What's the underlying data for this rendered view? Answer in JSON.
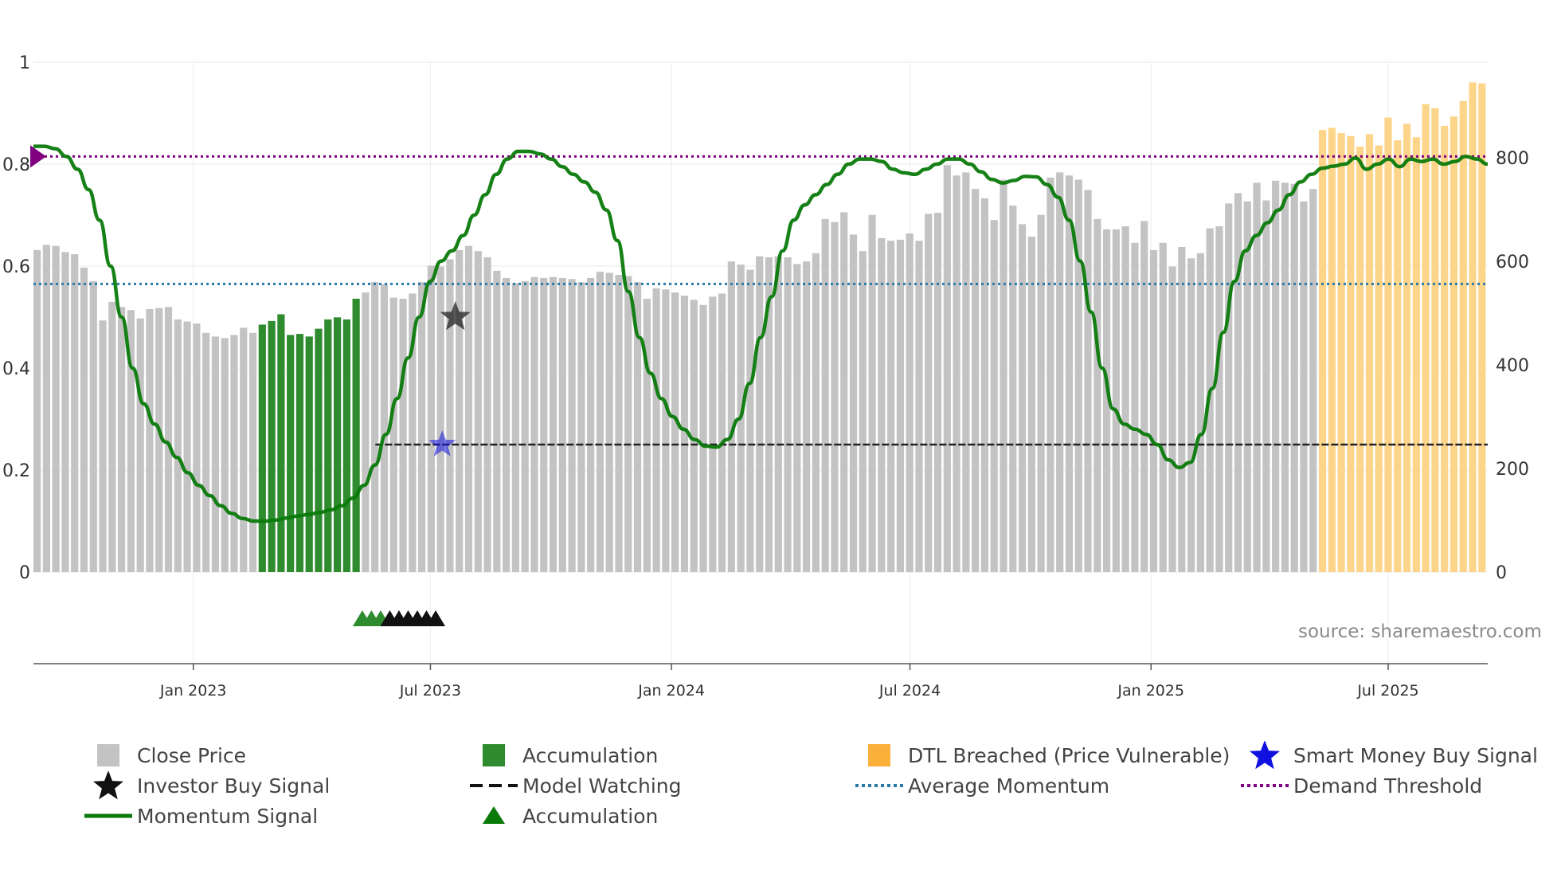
{
  "source_text": "source: sharemaestro.com",
  "colors": {
    "close_price": "#c3c3c3",
    "accumulation": "#2e8b2e",
    "dtl_breached": "#fdd58a",
    "momentum": "#0a7a0a",
    "average_momentum": "#2a7aa8",
    "demand_threshold": "#800080",
    "model_watching": "#222222",
    "smart_money": "#1010e0",
    "investor_buy": "#222222"
  },
  "legend": [
    {
      "key": "close_price",
      "label": "Close Price",
      "icon": "square-icon"
    },
    {
      "key": "accumulation_bar",
      "label": "Accumulation",
      "icon": "square-icon"
    },
    {
      "key": "dtl_breached",
      "label": "DTL Breached (Price Vulnerable)",
      "icon": "square-icon"
    },
    {
      "key": "smart_money",
      "label": "Smart Money Buy Signal",
      "icon": "star-icon"
    },
    {
      "key": "investor_buy",
      "label": "Investor Buy Signal",
      "icon": "star-icon"
    },
    {
      "key": "model_watching",
      "label": "Model Watching",
      "icon": "dash-line-icon"
    },
    {
      "key": "average_momentum",
      "label": "Average Momentum",
      "icon": "dot-line-icon"
    },
    {
      "key": "demand_threshold",
      "label": "Demand Threshold",
      "icon": "dot-line-icon"
    },
    {
      "key": "momentum",
      "label": "Momentum Signal",
      "icon": "line-icon"
    },
    {
      "key": "accumulation_marker",
      "label": "Accumulation",
      "icon": "triangle-icon"
    }
  ],
  "chart_data": {
    "type": "bar",
    "title": "",
    "x_axis": {
      "start": "2022-09-01",
      "end": "2025-09-15",
      "ticks": [
        {
          "date": "2023-01-01",
          "label": "Jan 2023"
        },
        {
          "date": "2023-07-01",
          "label": "Jul 2023"
        },
        {
          "date": "2024-01-01",
          "label": "Jan 2024"
        },
        {
          "date": "2024-07-01",
          "label": "Jul 2024"
        },
        {
          "date": "2025-01-01",
          "label": "Jan 2025"
        },
        {
          "date": "2025-07-01",
          "label": "Jul 2025"
        }
      ]
    },
    "y_left": {
      "min": 0,
      "max": 1,
      "ticks": [
        {
          "v": 0,
          "label": "0"
        },
        {
          "v": 0.2,
          "label": "0.2"
        },
        {
          "v": 0.4,
          "label": "0.4"
        },
        {
          "v": 0.6,
          "label": "0.6"
        },
        {
          "v": 0.8,
          "label": "0.8"
        },
        {
          "v": 1,
          "label": "1"
        }
      ]
    },
    "y_right": {
      "min": 0,
      "max": 985,
      "ticks": [
        {
          "v": 0,
          "label": "0"
        },
        {
          "v": 200,
          "label": "200"
        },
        {
          "v": 400,
          "label": "400"
        },
        {
          "v": 600,
          "label": "600"
        },
        {
          "v": 800,
          "label": "800"
        }
      ]
    },
    "price_bars": [
      {
        "series": "close",
        "values": [
          622,
          632,
          630,
          618,
          614,
          588,
          562,
          486,
          522,
          512,
          506,
          490,
          508,
          510,
          512,
          488,
          484,
          480,
          462,
          455,
          452,
          458,
          472,
          462
        ]
      },
      {
        "series": "accumulation",
        "values": [
          478,
          485,
          498,
          458,
          460,
          455,
          470,
          488,
          492,
          488,
          528
        ]
      },
      {
        "series": "close",
        "values": [
          540,
          560,
          556,
          530,
          528,
          538,
          560,
          592,
          590,
          604,
          622,
          630,
          620,
          608,
          582,
          568,
          558,
          562,
          570,
          568,
          570,
          568,
          566,
          560,
          568,
          580,
          578,
          574,
          572,
          560,
          528,
          548,
          546,
          540,
          534,
          526,
          516,
          532,
          538,
          600,
          594,
          584,
          610,
          608,
          610,
          608,
          595,
          600,
          616,
          682,
          676,
          695,
          652,
          620,
          690,
          645,
          640,
          642,
          654,
          640,
          692,
          694,
          786,
          766,
          772,
          740,
          722,
          680,
          758,
          708,
          672,
          648,
          690,
          762,
          772,
          766,
          758,
          738,
          682,
          662,
          662,
          668,
          636,
          678,
          622,
          636,
          590,
          628,
          606,
          616,
          664,
          668,
          712,
          732,
          716,
          752,
          718,
          756,
          752,
          750,
          716,
          740
        ]
      },
      {
        "series": "dtl_breached",
        "values": [
          854,
          858,
          848,
          842,
          822,
          846,
          824,
          878,
          834,
          866,
          840,
          904,
          896,
          862,
          880,
          910,
          946,
          944
        ]
      }
    ],
    "momentum": [
      0.835,
      0.835,
      0.83,
      0.815,
      0.79,
      0.75,
      0.69,
      0.6,
      0.5,
      0.4,
      0.33,
      0.29,
      0.255,
      0.225,
      0.195,
      0.17,
      0.15,
      0.13,
      0.115,
      0.105,
      0.1,
      0.1,
      0.102,
      0.106,
      0.11,
      0.113,
      0.117,
      0.122,
      0.13,
      0.145,
      0.17,
      0.21,
      0.27,
      0.34,
      0.42,
      0.5,
      0.57,
      0.61,
      0.63,
      0.66,
      0.7,
      0.74,
      0.78,
      0.81,
      0.825,
      0.825,
      0.82,
      0.81,
      0.795,
      0.78,
      0.765,
      0.745,
      0.71,
      0.65,
      0.55,
      0.46,
      0.39,
      0.34,
      0.305,
      0.28,
      0.26,
      0.247,
      0.245,
      0.26,
      0.3,
      0.37,
      0.46,
      0.54,
      0.63,
      0.69,
      0.72,
      0.74,
      0.76,
      0.78,
      0.8,
      0.81,
      0.81,
      0.805,
      0.79,
      0.783,
      0.78,
      0.79,
      0.8,
      0.81,
      0.81,
      0.8,
      0.785,
      0.77,
      0.763,
      0.768,
      0.776,
      0.775,
      0.76,
      0.735,
      0.69,
      0.61,
      0.51,
      0.4,
      0.32,
      0.29,
      0.28,
      0.27,
      0.25,
      0.22,
      0.205,
      0.215,
      0.27,
      0.36,
      0.47,
      0.57,
      0.63,
      0.66,
      0.685,
      0.71,
      0.74,
      0.765,
      0.78,
      0.792,
      0.796,
      0.8,
      0.812,
      0.79,
      0.8,
      0.81,
      0.795,
      0.81,
      0.805,
      0.81,
      0.8,
      0.805,
      0.815,
      0.81,
      0.8
    ],
    "average_momentum": 0.565,
    "demand_threshold": 0.815,
    "model_watching": {
      "value": 0.25,
      "start": "2023-05-20",
      "end": "2025-09-15"
    },
    "investor_buy_signal": {
      "date": "2023-07-20",
      "value": 0.5
    },
    "smart_money_buy_signal": {
      "date": "2023-07-10",
      "value": 0.25
    },
    "demand_marker": {
      "date": "2022-09-01",
      "value": 0.815
    },
    "accumulation_markers": [
      {
        "date": "2023-05-10",
        "color": "green"
      },
      {
        "date": "2023-05-17",
        "color": "green"
      },
      {
        "date": "2023-05-24",
        "color": "green"
      },
      {
        "date": "2023-05-31",
        "color": "black"
      },
      {
        "date": "2023-06-07",
        "color": "black"
      },
      {
        "date": "2023-06-14",
        "color": "black"
      },
      {
        "date": "2023-06-21",
        "color": "black"
      },
      {
        "date": "2023-06-28",
        "color": "black"
      },
      {
        "date": "2023-07-05",
        "color": "black"
      }
    ]
  }
}
